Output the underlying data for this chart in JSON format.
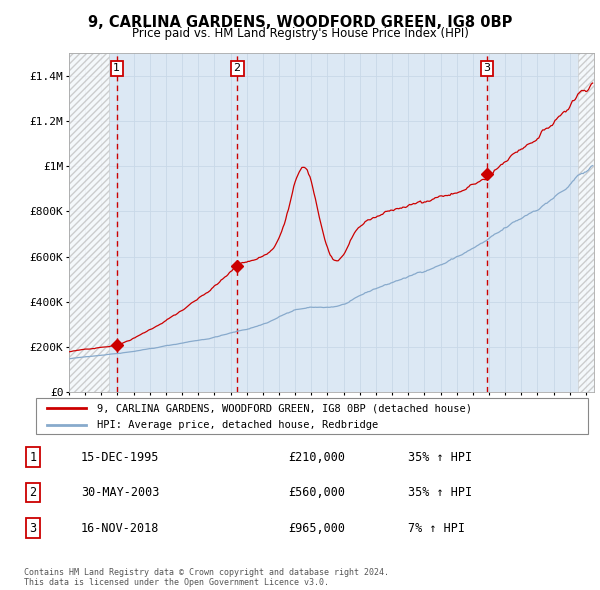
{
  "title": "9, CARLINA GARDENS, WOODFORD GREEN, IG8 0BP",
  "subtitle": "Price paid vs. HM Land Registry's House Price Index (HPI)",
  "xlim": [
    1993.0,
    2025.5
  ],
  "ylim": [
    0,
    1500000
  ],
  "yticks": [
    0,
    200000,
    400000,
    600000,
    800000,
    1000000,
    1200000,
    1400000
  ],
  "ytick_labels": [
    "£0",
    "£200K",
    "£400K",
    "£600K",
    "£800K",
    "£1M",
    "£1.2M",
    "£1.4M"
  ],
  "sale_dates": [
    1995.96,
    2003.41,
    2018.88
  ],
  "sale_prices": [
    210000,
    560000,
    965000
  ],
  "sale_labels": [
    "1",
    "2",
    "3"
  ],
  "legend_house": "9, CARLINA GARDENS, WOODFORD GREEN, IG8 0BP (detached house)",
  "legend_hpi": "HPI: Average price, detached house, Redbridge",
  "table_rows": [
    [
      "1",
      "15-DEC-1995",
      "£210,000",
      "35% ↑ HPI"
    ],
    [
      "2",
      "30-MAY-2003",
      "£560,000",
      "35% ↑ HPI"
    ],
    [
      "3",
      "16-NOV-2018",
      "£965,000",
      "7% ↑ HPI"
    ]
  ],
  "footnote": "Contains HM Land Registry data © Crown copyright and database right 2024.\nThis data is licensed under the Open Government Licence v3.0.",
  "grid_color": "#c8d8e8",
  "plot_bg": "#dce8f4",
  "red_line_color": "#cc0000",
  "blue_line_color": "#88aacc",
  "marker_color": "#cc0000",
  "dashed_line_color": "#cc0000",
  "hatch_left_end": 1995.5,
  "hatch_right_start": 2024.5
}
